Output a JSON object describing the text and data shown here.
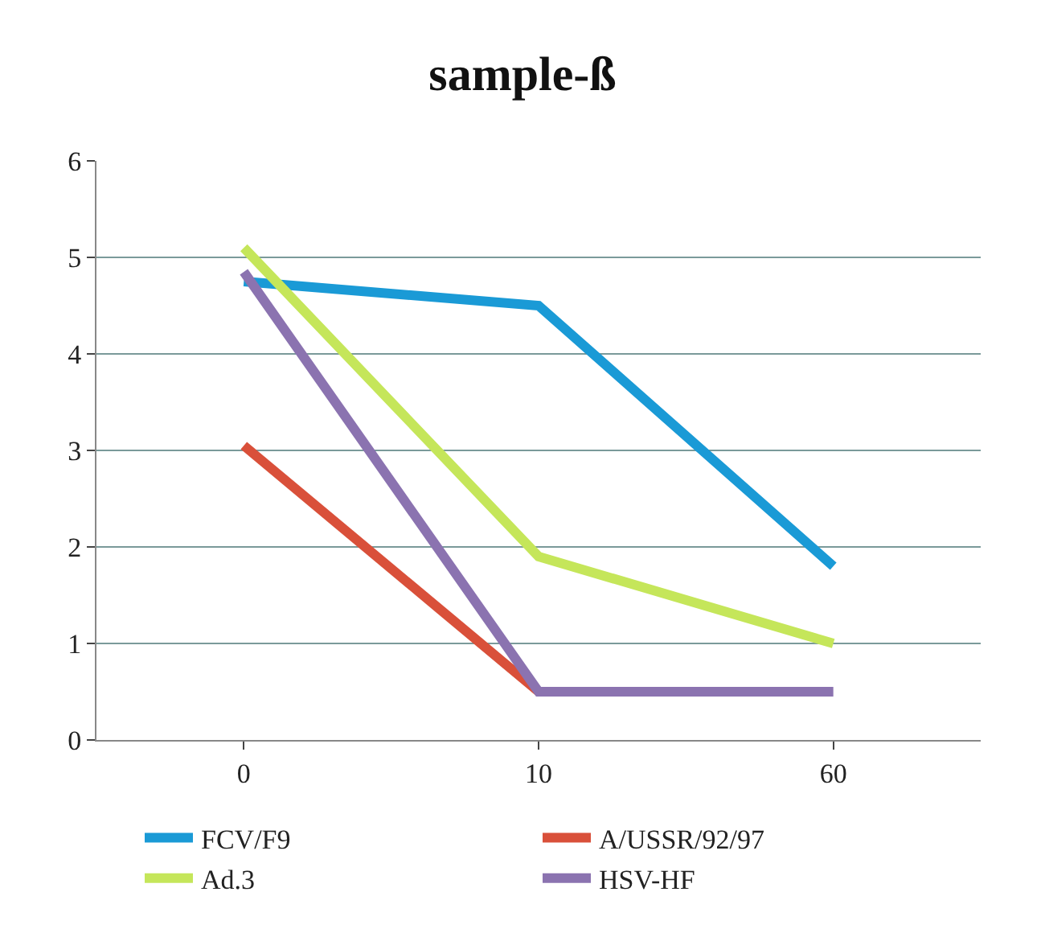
{
  "chart_data": {
    "type": "line",
    "title": "sample-ß",
    "categories": [
      "0",
      "10",
      "60"
    ],
    "series": [
      {
        "name": "FCV/F9",
        "color": "#1a9ad6",
        "values": [
          4.75,
          4.5,
          1.8
        ]
      },
      {
        "name": "A/USSR/92/97",
        "color": "#d9503a",
        "values": [
          3.05,
          0.5,
          null
        ]
      },
      {
        "name": "Ad.3",
        "color": "#c5e65a",
        "values": [
          5.1,
          1.9,
          1.0
        ]
      },
      {
        "name": "HSV-HF",
        "color": "#8b73b0",
        "values": [
          4.85,
          0.5,
          0.5
        ]
      }
    ],
    "ylim": [
      0,
      6
    ],
    "yticks": [
      0,
      1,
      2,
      3,
      4,
      5,
      6
    ],
    "grid": "y",
    "legend": "bottom",
    "marker": "none",
    "line_style": "solid"
  }
}
